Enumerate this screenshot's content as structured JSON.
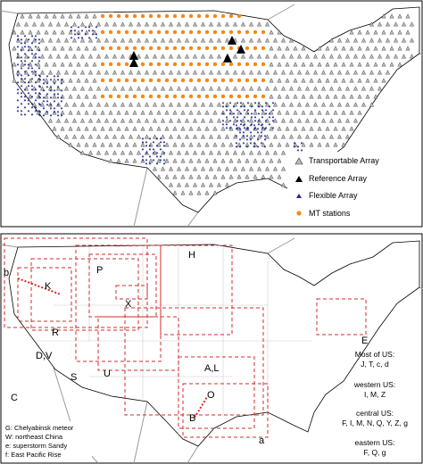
{
  "top_panel": {
    "legend": [
      "Transportable Array",
      "Reference Array",
      "Flexible Array",
      "MT stations"
    ]
  },
  "bottom_panel": {
    "region_labels": [
      "H",
      "P",
      "K",
      "X",
      "R",
      "D,V",
      "S",
      "U",
      "C",
      "A,L",
      "O",
      "B",
      "E",
      "b",
      "a"
    ],
    "coverage_notes": [
      {
        "heading": "Most of US:",
        "items": "J, T, c, d"
      },
      {
        "heading": "western US:",
        "items": "I, M, Z"
      },
      {
        "heading": "central US:",
        "items": "F, I, M, N, Q, Y, Z, g"
      },
      {
        "heading": "eastern US:",
        "items": "F, Q, g"
      }
    ],
    "event_key": [
      "G: Chelyabinsk meteor",
      "W: northeast China",
      "e: superstorm Sandy",
      "f: East Pacific Rise"
    ]
  }
}
